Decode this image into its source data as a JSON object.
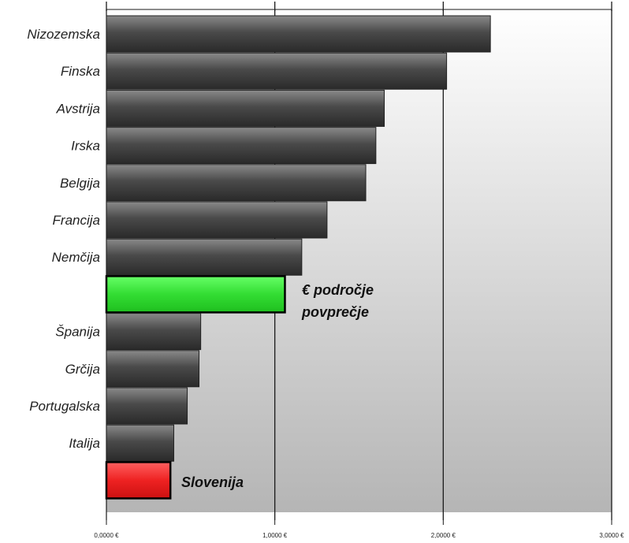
{
  "chart_data": {
    "type": "bar",
    "orientation": "horizontal",
    "categories": [
      "Nizozemska",
      "Finska",
      "Avstrija",
      "Irska",
      "Belgija",
      "Francija",
      "Nemčija",
      "€ področje povprečje",
      "Španija",
      "Grčija",
      "Portugalska",
      "Italija",
      "Slovenija"
    ],
    "values": [
      2.28,
      2.02,
      1.65,
      1.6,
      1.54,
      1.31,
      1.16,
      1.06,
      0.56,
      0.55,
      0.48,
      0.4,
      0.38
    ],
    "category_labels": [
      "Nizozemska",
      "Finska",
      "Avstrija",
      "Irska",
      "Belgija",
      "Francija",
      "Nemčija",
      "",
      "Španija",
      "Grčija",
      "Portugalska",
      "Italija",
      ""
    ],
    "annotations": {
      "average_line1": "€ področje",
      "average_line2": "povprečje",
      "slovenia": "Slovenija"
    },
    "xticks": [
      "0,0000 €",
      "1,0000 €",
      "2,0000 €",
      "3,0000 €"
    ],
    "xlim": [
      0,
      3
    ],
    "grid": true,
    "colors": {
      "default": "#4a4a4a",
      "highlight_average": "#33dd33",
      "highlight_slovenia": "#ee2222"
    },
    "title": "",
    "xlabel": "",
    "ylabel": ""
  }
}
